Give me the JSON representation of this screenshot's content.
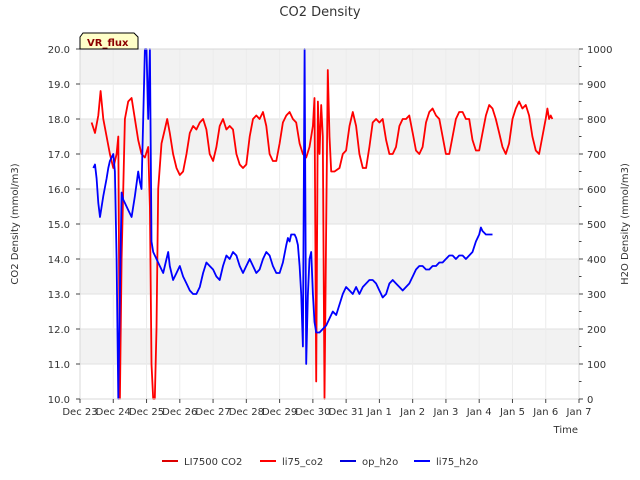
{
  "chart_data": {
    "type": "line",
    "title": "CO2 Density",
    "xlabel": "Time",
    "ylabel": "CO2 Density (mmol/m3)",
    "y2label": "H2O Density (mmol/m3)",
    "site_badge": "VR_flux",
    "xlim": [
      0,
      15
    ],
    "ylim": [
      10,
      20
    ],
    "y2lim": [
      0,
      1000
    ],
    "x_ticks": [
      "Dec 23",
      "Dec 24",
      "Dec 25",
      "Dec 26",
      "Dec 27",
      "Dec 28",
      "Dec 29",
      "Dec 30",
      "Dec 31",
      "Jan 1",
      "Jan 2",
      "Jan 3",
      "Jan 4",
      "Jan 5",
      "Jan 6",
      "Jan 7"
    ],
    "y_ticks": [
      "10.0",
      "11.0",
      "12.0",
      "13.0",
      "14.0",
      "15.0",
      "16.0",
      "17.0",
      "18.0",
      "19.0",
      "20.0"
    ],
    "y2_ticks": [
      "0",
      "100",
      "200",
      "300",
      "400",
      "500",
      "600",
      "700",
      "800",
      "900",
      "1000"
    ],
    "grid": true,
    "legend_position": "bottom",
    "series": [
      {
        "name": "LI7500 CO2",
        "color": "#dd0000",
        "axis": "left",
        "points": []
      },
      {
        "name": "li75_co2",
        "color": "#ff0000",
        "axis": "left",
        "points": [
          [
            0.35,
            17.9
          ],
          [
            0.45,
            17.6
          ],
          [
            0.55,
            18.1
          ],
          [
            0.62,
            18.8
          ],
          [
            0.7,
            18.0
          ],
          [
            0.8,
            17.5
          ],
          [
            0.9,
            17.0
          ],
          [
            1.0,
            16.6
          ],
          [
            1.1,
            17.0
          ],
          [
            1.15,
            17.5
          ],
          [
            1.2,
            10.0
          ],
          [
            1.25,
            14.0
          ],
          [
            1.35,
            18.0
          ],
          [
            1.45,
            18.5
          ],
          [
            1.55,
            18.6
          ],
          [
            1.65,
            18.0
          ],
          [
            1.75,
            17.4
          ],
          [
            1.85,
            17.0
          ],
          [
            1.95,
            16.9
          ],
          [
            2.05,
            17.2
          ],
          [
            2.1,
            15.5
          ],
          [
            2.15,
            11.0
          ],
          [
            2.2,
            10.0
          ],
          [
            2.25,
            10.0
          ],
          [
            2.3,
            12.0
          ],
          [
            2.35,
            16.0
          ],
          [
            2.45,
            17.3
          ],
          [
            2.55,
            17.7
          ],
          [
            2.62,
            18.0
          ],
          [
            2.7,
            17.6
          ],
          [
            2.8,
            17.0
          ],
          [
            2.9,
            16.6
          ],
          [
            3.0,
            16.4
          ],
          [
            3.1,
            16.5
          ],
          [
            3.2,
            17.0
          ],
          [
            3.3,
            17.6
          ],
          [
            3.4,
            17.8
          ],
          [
            3.5,
            17.7
          ],
          [
            3.6,
            17.9
          ],
          [
            3.7,
            18.0
          ],
          [
            3.8,
            17.7
          ],
          [
            3.9,
            17.0
          ],
          [
            4.0,
            16.8
          ],
          [
            4.1,
            17.2
          ],
          [
            4.2,
            17.8
          ],
          [
            4.3,
            18.0
          ],
          [
            4.4,
            17.7
          ],
          [
            4.5,
            17.8
          ],
          [
            4.6,
            17.7
          ],
          [
            4.7,
            17.0
          ],
          [
            4.8,
            16.7
          ],
          [
            4.9,
            16.6
          ],
          [
            5.0,
            16.7
          ],
          [
            5.1,
            17.5
          ],
          [
            5.2,
            18.0
          ],
          [
            5.3,
            18.1
          ],
          [
            5.4,
            18.0
          ],
          [
            5.5,
            18.2
          ],
          [
            5.6,
            17.8
          ],
          [
            5.7,
            17.0
          ],
          [
            5.8,
            16.8
          ],
          [
            5.9,
            16.8
          ],
          [
            6.0,
            17.3
          ],
          [
            6.1,
            17.9
          ],
          [
            6.2,
            18.1
          ],
          [
            6.3,
            18.2
          ],
          [
            6.4,
            18.0
          ],
          [
            6.5,
            17.9
          ],
          [
            6.6,
            17.3
          ],
          [
            6.7,
            17.0
          ],
          [
            6.8,
            16.9
          ],
          [
            6.9,
            17.2
          ],
          [
            7.0,
            17.8
          ],
          [
            7.05,
            18.6
          ],
          [
            7.1,
            10.5
          ],
          [
            7.15,
            18.5
          ],
          [
            7.2,
            17.0
          ],
          [
            7.25,
            18.4
          ],
          [
            7.3,
            17.5
          ],
          [
            7.35,
            10.0
          ],
          [
            7.4,
            15.0
          ],
          [
            7.45,
            19.4
          ],
          [
            7.5,
            17.5
          ],
          [
            7.55,
            16.5
          ],
          [
            7.65,
            16.5
          ],
          [
            7.8,
            16.6
          ],
          [
            7.9,
            17.0
          ],
          [
            8.0,
            17.1
          ],
          [
            8.1,
            17.8
          ],
          [
            8.2,
            18.2
          ],
          [
            8.3,
            17.8
          ],
          [
            8.4,
            17.0
          ],
          [
            8.5,
            16.6
          ],
          [
            8.6,
            16.6
          ],
          [
            8.7,
            17.2
          ],
          [
            8.8,
            17.9
          ],
          [
            8.9,
            18.0
          ],
          [
            9.0,
            17.9
          ],
          [
            9.1,
            18.0
          ],
          [
            9.2,
            17.4
          ],
          [
            9.3,
            17.0
          ],
          [
            9.4,
            17.0
          ],
          [
            9.5,
            17.2
          ],
          [
            9.6,
            17.8
          ],
          [
            9.7,
            18.0
          ],
          [
            9.8,
            18.0
          ],
          [
            9.9,
            18.1
          ],
          [
            10.0,
            17.6
          ],
          [
            10.1,
            17.1
          ],
          [
            10.2,
            17.0
          ],
          [
            10.3,
            17.2
          ],
          [
            10.4,
            17.9
          ],
          [
            10.5,
            18.2
          ],
          [
            10.6,
            18.3
          ],
          [
            10.7,
            18.1
          ],
          [
            10.8,
            18.0
          ],
          [
            10.9,
            17.5
          ],
          [
            11.0,
            17.0
          ],
          [
            11.1,
            17.0
          ],
          [
            11.2,
            17.5
          ],
          [
            11.3,
            18.0
          ],
          [
            11.4,
            18.2
          ],
          [
            11.5,
            18.2
          ],
          [
            11.6,
            18.0
          ],
          [
            11.7,
            18.0
          ],
          [
            11.8,
            17.4
          ],
          [
            11.9,
            17.1
          ],
          [
            12.0,
            17.1
          ],
          [
            12.1,
            17.6
          ],
          [
            12.2,
            18.1
          ],
          [
            12.3,
            18.4
          ],
          [
            12.4,
            18.3
          ],
          [
            12.5,
            18.0
          ],
          [
            12.6,
            17.6
          ],
          [
            12.7,
            17.2
          ],
          [
            12.8,
            17.0
          ],
          [
            12.9,
            17.3
          ],
          [
            13.0,
            18.0
          ],
          [
            13.1,
            18.3
          ],
          [
            13.2,
            18.5
          ],
          [
            13.3,
            18.3
          ],
          [
            13.4,
            18.4
          ],
          [
            13.5,
            18.1
          ],
          [
            13.6,
            17.5
          ],
          [
            13.7,
            17.1
          ],
          [
            13.8,
            17.0
          ],
          [
            13.9,
            17.5
          ],
          [
            14.0,
            18.0
          ],
          [
            14.05,
            18.3
          ],
          [
            14.1,
            18.0
          ],
          [
            14.15,
            18.1
          ],
          [
            14.2,
            18.0
          ]
        ]
      },
      {
        "name": "op_h2o",
        "color": "#0000dd",
        "axis": "right",
        "points": []
      },
      {
        "name": "li75_h2o",
        "color": "#0000ff",
        "axis": "right",
        "points": [
          [
            0.4,
            660
          ],
          [
            0.45,
            670
          ],
          [
            0.5,
            630
          ],
          [
            0.55,
            560
          ],
          [
            0.6,
            520
          ],
          [
            0.7,
            580
          ],
          [
            0.8,
            630
          ],
          [
            0.85,
            660
          ],
          [
            0.9,
            680
          ],
          [
            0.95,
            690
          ],
          [
            1.0,
            700
          ],
          [
            1.05,
            650
          ],
          [
            1.1,
            400
          ],
          [
            1.15,
            0
          ],
          [
            1.2,
            300
          ],
          [
            1.25,
            590
          ],
          [
            1.3,
            570
          ],
          [
            1.35,
            560
          ],
          [
            1.45,
            540
          ],
          [
            1.55,
            520
          ],
          [
            1.65,
            580
          ],
          [
            1.75,
            650
          ],
          [
            1.8,
            620
          ],
          [
            1.85,
            600
          ],
          [
            1.95,
            1000
          ],
          [
            2.0,
            1000
          ],
          [
            2.05,
            800
          ],
          [
            2.1,
            1000
          ],
          [
            2.15,
            450
          ],
          [
            2.2,
            420
          ],
          [
            2.3,
            400
          ],
          [
            2.4,
            380
          ],
          [
            2.5,
            360
          ],
          [
            2.6,
            400
          ],
          [
            2.65,
            420
          ],
          [
            2.7,
            380
          ],
          [
            2.8,
            340
          ],
          [
            2.9,
            360
          ],
          [
            3.0,
            380
          ],
          [
            3.1,
            350
          ],
          [
            3.2,
            330
          ],
          [
            3.3,
            310
          ],
          [
            3.4,
            300
          ],
          [
            3.5,
            300
          ],
          [
            3.6,
            320
          ],
          [
            3.7,
            360
          ],
          [
            3.8,
            390
          ],
          [
            3.9,
            380
          ],
          [
            4.0,
            370
          ],
          [
            4.1,
            350
          ],
          [
            4.2,
            340
          ],
          [
            4.3,
            380
          ],
          [
            4.4,
            410
          ],
          [
            4.5,
            400
          ],
          [
            4.6,
            420
          ],
          [
            4.7,
            410
          ],
          [
            4.8,
            380
          ],
          [
            4.9,
            360
          ],
          [
            5.0,
            380
          ],
          [
            5.1,
            400
          ],
          [
            5.2,
            380
          ],
          [
            5.3,
            360
          ],
          [
            5.4,
            370
          ],
          [
            5.5,
            400
          ],
          [
            5.6,
            420
          ],
          [
            5.7,
            410
          ],
          [
            5.8,
            380
          ],
          [
            5.9,
            360
          ],
          [
            6.0,
            360
          ],
          [
            6.1,
            390
          ],
          [
            6.2,
            440
          ],
          [
            6.25,
            460
          ],
          [
            6.3,
            450
          ],
          [
            6.35,
            470
          ],
          [
            6.4,
            470
          ],
          [
            6.45,
            470
          ],
          [
            6.5,
            460
          ],
          [
            6.55,
            440
          ],
          [
            6.6,
            380
          ],
          [
            6.65,
            300
          ],
          [
            6.7,
            150
          ],
          [
            6.75,
            1000
          ],
          [
            6.8,
            100
          ],
          [
            6.85,
            300
          ],
          [
            6.9,
            400
          ],
          [
            6.95,
            420
          ],
          [
            7.0,
            300
          ],
          [
            7.05,
            220
          ],
          [
            7.1,
            190
          ],
          [
            7.2,
            190
          ],
          [
            7.3,
            200
          ],
          [
            7.4,
            210
          ],
          [
            7.5,
            230
          ],
          [
            7.6,
            250
          ],
          [
            7.7,
            240
          ],
          [
            7.8,
            270
          ],
          [
            7.9,
            300
          ],
          [
            8.0,
            320
          ],
          [
            8.1,
            310
          ],
          [
            8.2,
            300
          ],
          [
            8.3,
            320
          ],
          [
            8.4,
            300
          ],
          [
            8.5,
            320
          ],
          [
            8.6,
            330
          ],
          [
            8.7,
            340
          ],
          [
            8.8,
            340
          ],
          [
            8.9,
            330
          ],
          [
            9.0,
            310
          ],
          [
            9.1,
            290
          ],
          [
            9.2,
            300
          ],
          [
            9.3,
            330
          ],
          [
            9.4,
            340
          ],
          [
            9.5,
            330
          ],
          [
            9.6,
            320
          ],
          [
            9.7,
            310
          ],
          [
            9.8,
            320
          ],
          [
            9.9,
            330
          ],
          [
            10.0,
            350
          ],
          [
            10.1,
            370
          ],
          [
            10.2,
            380
          ],
          [
            10.3,
            380
          ],
          [
            10.4,
            370
          ],
          [
            10.5,
            370
          ],
          [
            10.6,
            380
          ],
          [
            10.7,
            380
          ],
          [
            10.8,
            390
          ],
          [
            10.9,
            390
          ],
          [
            11.0,
            400
          ],
          [
            11.1,
            410
          ],
          [
            11.2,
            410
          ],
          [
            11.3,
            400
          ],
          [
            11.4,
            410
          ],
          [
            11.5,
            410
          ],
          [
            11.6,
            400
          ],
          [
            11.7,
            410
          ],
          [
            11.8,
            420
          ],
          [
            11.9,
            450
          ],
          [
            12.0,
            470
          ],
          [
            12.05,
            490
          ],
          [
            12.1,
            480
          ],
          [
            12.2,
            470
          ],
          [
            12.3,
            470
          ],
          [
            12.4,
            470
          ]
        ]
      }
    ]
  }
}
